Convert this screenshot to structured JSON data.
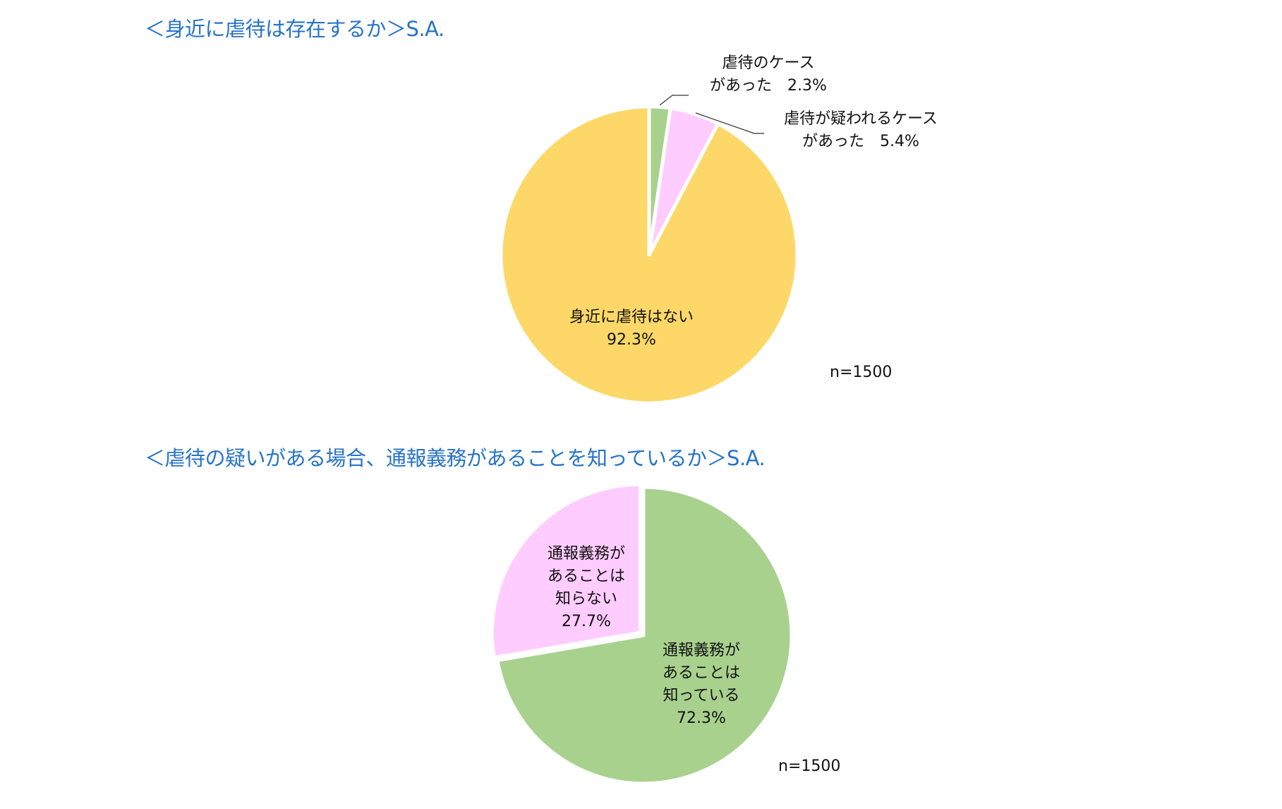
{
  "chart_data": [
    {
      "type": "pie",
      "title": "＜身近に虐待は存在するか＞S.A.",
      "note": "n=1500",
      "start": "top, clockwise",
      "slices": [
        {
          "label_lines": [
            "虐待のケース",
            "があった　2.3%"
          ],
          "label": "虐待のケースがあった",
          "value": 2.3,
          "color": "#A9D18E"
        },
        {
          "label_lines": [
            "虐待が疑われるケース",
            "があった　5.4%"
          ],
          "label": "虐待が疑われるケースがあった",
          "value": 5.4,
          "color": "#FFCCFF"
        },
        {
          "label_lines": [
            "身近に虐待はない",
            "92.3%"
          ],
          "label": "身近に虐待はない",
          "value": 92.3,
          "color": "#FDD868"
        }
      ]
    },
    {
      "type": "pie",
      "title": "＜虐待の疑いがある場合、通報義務があることを知っているか＞S.A.",
      "note": "n=1500",
      "start": "top, clockwise",
      "slices": [
        {
          "label_lines": [
            "通報義務が",
            "あることは",
            "知っている",
            "72.3%"
          ],
          "label": "通報義務があることは知っている",
          "value": 72.3,
          "color": "#A9D18E"
        },
        {
          "label_lines": [
            "通報義務が",
            "あることは",
            "知らない",
            "27.7%"
          ],
          "label": "通報義務があることは知らない",
          "value": 27.7,
          "color": "#FFCCFF"
        }
      ]
    }
  ]
}
